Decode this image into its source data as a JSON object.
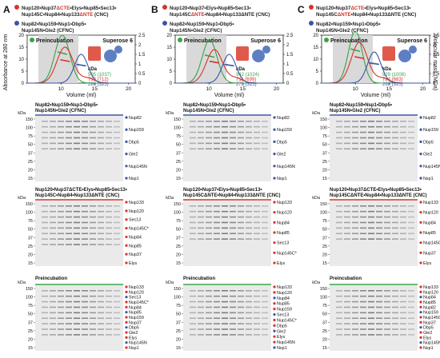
{
  "figure": {
    "colors": {
      "red": "#d4342c",
      "green": "#3aa346",
      "blue": "#3a55a5",
      "gel_bg": "#eaeaea",
      "band": "#6b6b6b"
    },
    "y_axis_label": "Absorbance at 280 nm",
    "right_axis_label": "Molecular mass (MDa)",
    "panels": [
      {
        "letter": "A",
        "title_red_line1": [
          "Nup120•Nup37",
          "ΔCTE",
          "•Elys•Nup85•Sec13•"
        ],
        "title_red_line2": [
          "Nup145C•Nup84•Nup133",
          "ΔNTE",
          " (CNC)"
        ],
        "title_blue_line1": "Nup82•Nup159•Nsp1•Dbp5•",
        "title_blue_line2": "Nup145N•Gle2 (CFNC)",
        "preincubation": "Preincubation",
        "superose": "Superose 6",
        "kda_header": "kDa",
        "kda_green": "905 (1037)",
        "kda_red": "792 (712)",
        "kda_blue": "286 (325)",
        "xlabel": "Volume (ml)",
        "xticks": [
          "10",
          "15",
          "20"
        ],
        "yticks_left": [
          "0",
          "5",
          "10",
          "15",
          "20"
        ],
        "yticks_right": [
          "0",
          "0.5",
          "1",
          "1.5",
          "2",
          "2.5"
        ],
        "gel_kda": [
          "kDa",
          "150",
          "100",
          "75",
          "50",
          "37",
          "25",
          "20",
          "15"
        ],
        "gel1_title": [
          "Nup82•Nup159•Nsp1•Dbp5•",
          "Nup145N•Gle2 (CFNC)"
        ],
        "gel1_labels": [
          "Nup82",
          "Nup159",
          "Dbp5",
          "Gle2",
          "Nup145N",
          "Nsp1"
        ],
        "gel2_title": [
          "Nup120•Nup37ΔCTE•Elys•Nup85•Sec13•",
          "Nup145C•Nup84•Nup133ΔNTE (CNC)"
        ],
        "gel2_labels": [
          "Nup133",
          "Nup120",
          "Sec13",
          "Nup145C*",
          "Nup84",
          "Nup85",
          "Nup37",
          "Elys"
        ],
        "gel3_title": "Preincubation",
        "gel3_labels": [
          "Nup133",
          "Nup120",
          "Sec13",
          "Nup145C*",
          "Nup84",
          "Nup85",
          "Nup159",
          "Nup37",
          "Dbp5",
          "Gle2",
          "Elys",
          "Nup145N",
          "Nsp1"
        ]
      },
      {
        "letter": "B",
        "title_red_line1": [
          "Nup120•Nup37•Elys•Nup85•Sec13•",
          "",
          ""
        ],
        "title_red_line2": [
          "Nup145C",
          "ΔNTE",
          "•Nup84•Nup133ΔNTE (CNC)"
        ],
        "title_blue_line1": "Nup82•Nup159•Nsp1•Dbp5•",
        "title_blue_line2": "Nup145N•Gle2 (CFNC)",
        "preincubation": "Preincubation",
        "superose": "Superose 6",
        "kda_header": "kDa",
        "kda_green": "942 (1024)",
        "kda_red": "711 (699)",
        "kda_blue": "275 (325)",
        "xlabel": "Volume (ml)",
        "xticks": [
          "10",
          "15",
          "20"
        ],
        "yticks_left": [
          "0",
          "5",
          "10",
          "15",
          "20"
        ],
        "yticks_right": [
          "0",
          "0.5",
          "1",
          "1.5",
          "2",
          "2.5"
        ],
        "gel_kda": [
          "kDa",
          "150",
          "100",
          "75",
          "50",
          "37",
          "25",
          "20",
          "15"
        ],
        "gel1_title": [
          "Nup82•Nup159•Nsp1•Dbp5•",
          "Nup145N•Gle2 (CFNC)"
        ],
        "gel1_labels": [
          "Nup82",
          "Nup159",
          "Dbp5",
          "Gle2",
          "Nup145N",
          "Nsp1"
        ],
        "gel2_title": [
          "Nup120•Nup37•Elys•Nup85•Sec13•",
          "Nup145CΔNTE•Nup84•Nup133ΔNTE (CNC)"
        ],
        "gel2_labels": [
          "Nup133",
          "Nup120",
          "Nup84",
          "Nup85",
          "Sec13",
          "Nup145C*",
          "Elys"
        ],
        "gel3_title": "Preincubation",
        "gel3_labels": [
          "Nup133",
          "Nup120",
          "Nup84",
          "Nup85",
          "Nup159",
          "Sec13",
          "Nup145C*",
          "Dbp5",
          "Gle2",
          "Elys",
          "Nup145N",
          "Nsp1"
        ]
      },
      {
        "letter": "C",
        "title_red_line1": [
          "Nup120•Nup37",
          "ΔCTE",
          "•Elys•Nup85•Sec13•"
        ],
        "title_red_line2": [
          "Nup145C",
          "ΔNTE",
          "•Nup84•Nup133ΔNTE (CNC)"
        ],
        "title_blue_line1": "Nup82•Nup159•Nsp1•Dbp5•",
        "title_blue_line2": "Nup145N•Gle2 (CFNC)",
        "preincubation": "Preincubation",
        "superose": "Superose 6",
        "kda_header": "kDa",
        "kda_green": "829 (1008)",
        "kda_red": "724 (683)",
        "kda_blue": "269 (325)",
        "xlabel": "Volume (ml)",
        "xticks": [
          "10",
          "15",
          "20"
        ],
        "yticks_left": [
          "0",
          "5",
          "10",
          "15",
          "20"
        ],
        "yticks_right": [
          "0",
          "0.5",
          "1",
          "1.5",
          "2",
          "2.5"
        ],
        "gel_kda": [
          "kDa",
          "150",
          "100",
          "75",
          "50",
          "37",
          "25",
          "20",
          "15"
        ],
        "gel1_title": [
          "Nup82•Nup159•Nsp1•Dbp5•",
          "Nup145N•Gle2 (CFNC)"
        ],
        "gel1_labels": [
          "Nup82",
          "Nup159",
          "Dbp5",
          "Gle2",
          "Nup145N",
          "Nsp1"
        ],
        "gel2_title": [
          "Nup120•Nup37ΔCTE•Elys•Nup85•Sec13•",
          "Nup145CΔNTE•Nup84•Nup133ΔNTE (CNC)"
        ],
        "gel2_labels": [
          "Nup133",
          "Nup120",
          "Nup84",
          "Nup85",
          "Nup145C*",
          "Nup37",
          "Elys"
        ],
        "gel3_title": "Preincubation",
        "gel3_labels": [
          "Nup133",
          "Nup120",
          "Nup84",
          "Nup85",
          "Nup82",
          "Nup159",
          "Nup145C*",
          "Nup37",
          "Dbp5",
          "Gle2",
          "Elys",
          "Nup145N",
          "Nsp1"
        ]
      }
    ]
  },
  "chart_data": [
    {
      "type": "line",
      "panel": "A",
      "xlabel": "Volume (ml)",
      "ylabel": "Absorbance at 280 nm",
      "y2label": "Molecular mass (MDa)",
      "xlim": [
        5,
        21
      ],
      "ylim": [
        0,
        20
      ],
      "y2lim": [
        0,
        2.5
      ],
      "series": [
        {
          "color": "green",
          "peak_x": 10.2,
          "peak_y": 20,
          "sigma": 1.1
        },
        {
          "color": "red",
          "peak_x": 10.6,
          "peak_y": 15,
          "sigma": 1.2
        },
        {
          "color": "blue",
          "peak_x": 13.0,
          "peak_y": 12,
          "sigma": 1.0
        }
      ]
    },
    {
      "type": "line",
      "panel": "B",
      "xlabel": "Volume (ml)",
      "ylabel": "",
      "y2label": "",
      "xlim": [
        5,
        21
      ],
      "ylim": [
        0,
        20
      ],
      "y2lim": [
        0,
        2.5
      ],
      "series": [
        {
          "color": "green",
          "peak_x": 10.1,
          "peak_y": 18,
          "sigma": 1.1
        },
        {
          "color": "red",
          "peak_x": 10.8,
          "peak_y": 14,
          "sigma": 1.2
        },
        {
          "color": "blue",
          "peak_x": 13.0,
          "peak_y": 12,
          "sigma": 1.0
        }
      ]
    },
    {
      "type": "line",
      "panel": "C",
      "xlabel": "Volume (ml)",
      "ylabel": "",
      "y2label": "Molecular mass (MDa)",
      "xlim": [
        5,
        21
      ],
      "ylim": [
        0,
        20
      ],
      "y2lim": [
        0,
        2.5
      ],
      "series": [
        {
          "color": "green",
          "peak_x": 10.0,
          "peak_y": 22,
          "sigma": 1.0
        },
        {
          "color": "red",
          "peak_x": 10.6,
          "peak_y": 17,
          "sigma": 1.2
        },
        {
          "color": "blue",
          "peak_x": 12.8,
          "peak_y": 13,
          "sigma": 1.0
        }
      ]
    }
  ]
}
